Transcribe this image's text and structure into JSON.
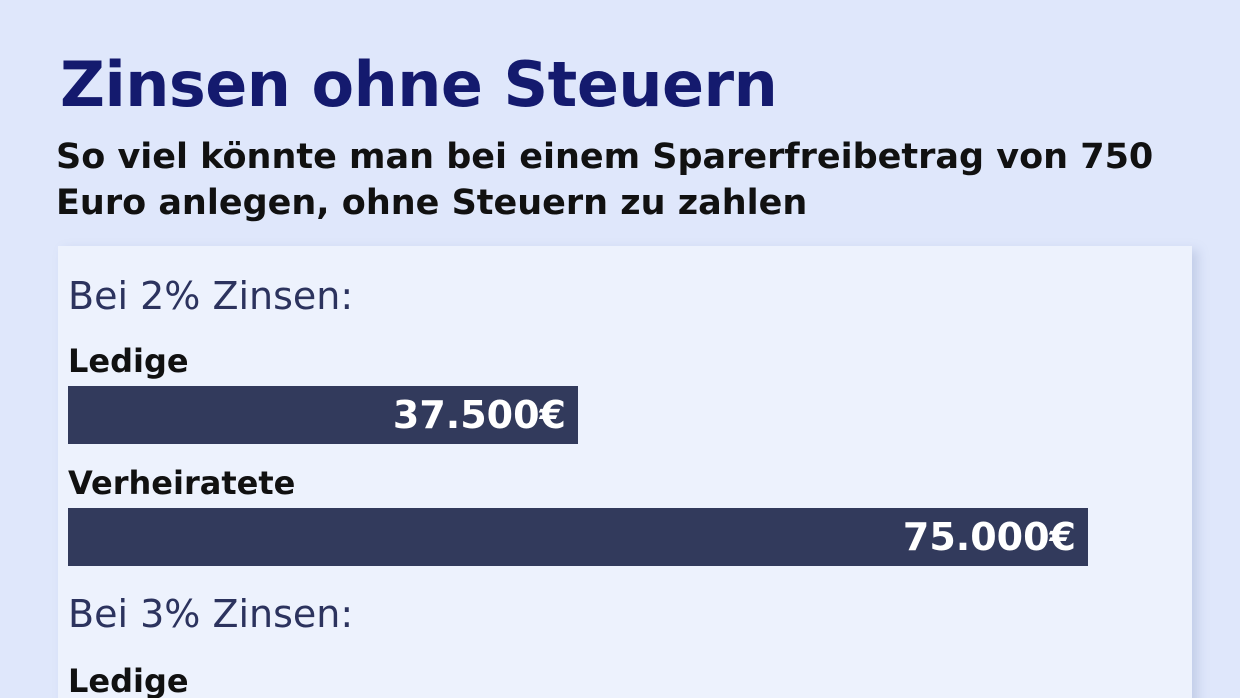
{
  "header": {
    "title": "Zinsen ohne Steuern",
    "subtitle": "So viel könnte man bei einem Sparerfreibetrag von 750 Euro anlegen, ohne Steuern zu zahlen"
  },
  "colors": {
    "background": "#dfe7fb",
    "panel": "#edf2fd",
    "bar": "#323a5c",
    "title": "#141a6e"
  },
  "chart_data": {
    "type": "bar",
    "orientation": "horizontal",
    "title": "Zinsen ohne Steuern",
    "subtitle": "So viel könnte man bei einem Sparerfreibetrag von 750 Euro anlegen, ohne Steuern zu zahlen",
    "unit": "€",
    "xlim": [
      0,
      75000
    ],
    "groups": [
      {
        "heading": "Bei 2% Zinsen:",
        "rows": [
          {
            "label": "Ledige",
            "value": 37500,
            "value_label": "37.500€"
          },
          {
            "label": "Verheiratete",
            "value": 75000,
            "value_label": "75.000€"
          }
        ]
      },
      {
        "heading": "Bei 3% Zinsen:",
        "rows": [
          {
            "label": "Ledige"
          }
        ]
      }
    ]
  }
}
